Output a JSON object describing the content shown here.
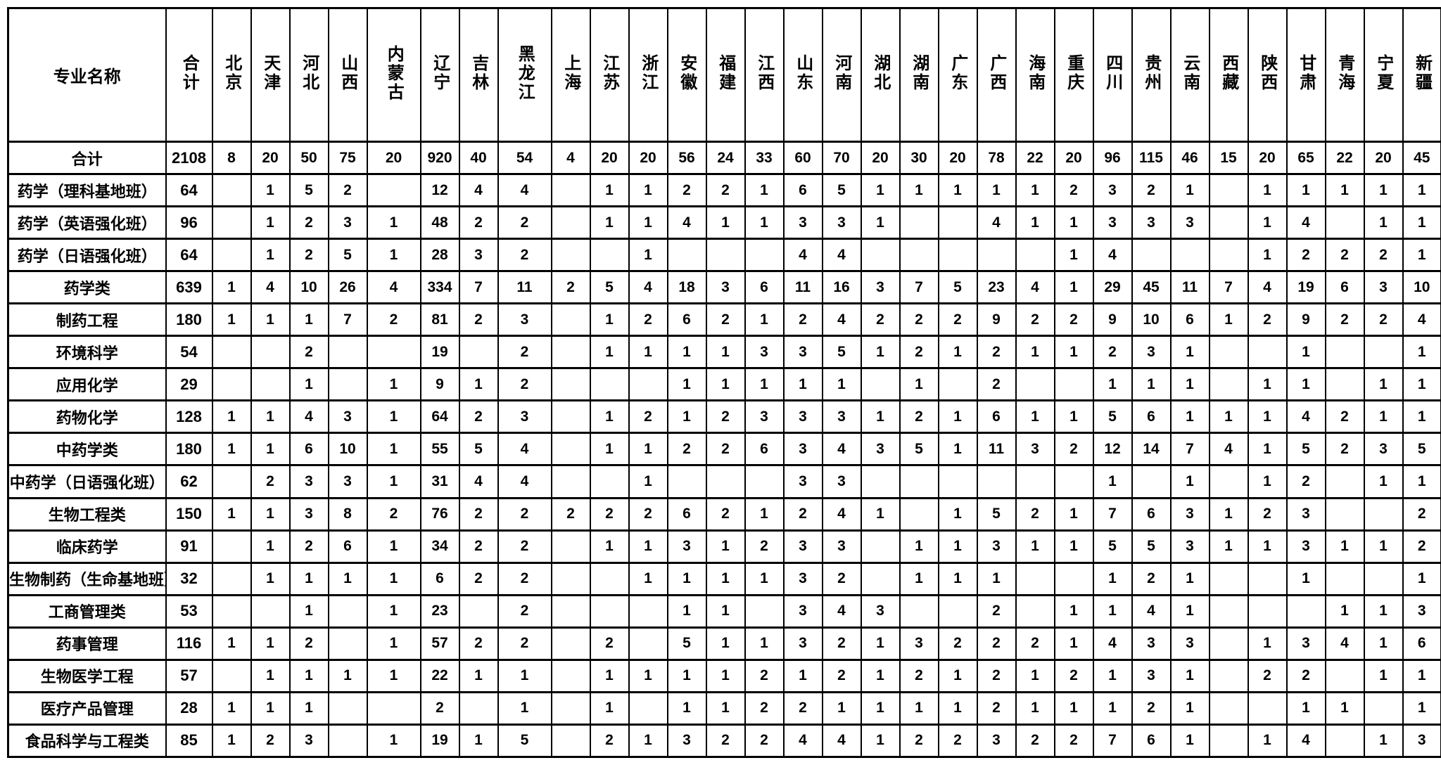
{
  "page": {
    "background": "#ffffff",
    "text_color": "#000000",
    "border_color": "#000000"
  },
  "table": {
    "corner_header": "专业名称",
    "total_header": "合计",
    "provinces": [
      "北京",
      "天津",
      "河北",
      "山西",
      "内蒙古",
      "辽宁",
      "吉林",
      "黑龙江",
      "上海",
      "江苏",
      "浙江",
      "安徽",
      "福建",
      "江西",
      "山东",
      "河南",
      "湖北",
      "湖南",
      "广东",
      "广西",
      "海南",
      "重庆",
      "四川",
      "贵州",
      "云南",
      "西藏",
      "陕西",
      "甘肃",
      "青海",
      "宁夏",
      "新疆"
    ],
    "rows": [
      {
        "name": "合计",
        "total": "2108",
        "values": [
          "8",
          "20",
          "50",
          "75",
          "20",
          "920",
          "40",
          "54",
          "4",
          "20",
          "20",
          "56",
          "24",
          "33",
          "60",
          "70",
          "20",
          "30",
          "20",
          "78",
          "22",
          "20",
          "96",
          "115",
          "46",
          "15",
          "20",
          "65",
          "22",
          "20",
          "45"
        ]
      },
      {
        "name": "药学（理科基地班）",
        "total": "64",
        "values": [
          "",
          "1",
          "5",
          "2",
          "",
          "12",
          "4",
          "4",
          "",
          "1",
          "1",
          "2",
          "2",
          "1",
          "6",
          "5",
          "1",
          "1",
          "1",
          "1",
          "1",
          "2",
          "3",
          "2",
          "1",
          "",
          "1",
          "1",
          "1",
          "1",
          "1"
        ]
      },
      {
        "name": "药学（英语强化班）",
        "total": "96",
        "values": [
          "",
          "1",
          "2",
          "3",
          "1",
          "48",
          "2",
          "2",
          "",
          "1",
          "1",
          "4",
          "1",
          "1",
          "3",
          "3",
          "1",
          "",
          "",
          "4",
          "1",
          "1",
          "3",
          "3",
          "3",
          "",
          "1",
          "4",
          "",
          "1",
          "1"
        ]
      },
      {
        "name": "药学（日语强化班）",
        "total": "64",
        "values": [
          "",
          "1",
          "2",
          "5",
          "1",
          "28",
          "3",
          "2",
          "",
          "",
          "1",
          "",
          "",
          "",
          "4",
          "4",
          "",
          "",
          "",
          "",
          "",
          "1",
          "4",
          "",
          "",
          "",
          "1",
          "2",
          "2",
          "2",
          "1"
        ]
      },
      {
        "name": "药学类",
        "total": "639",
        "values": [
          "1",
          "4",
          "10",
          "26",
          "4",
          "334",
          "7",
          "11",
          "2",
          "5",
          "4",
          "18",
          "3",
          "6",
          "11",
          "16",
          "3",
          "7",
          "5",
          "23",
          "4",
          "1",
          "29",
          "45",
          "11",
          "7",
          "4",
          "19",
          "6",
          "3",
          "10"
        ]
      },
      {
        "name": "制药工程",
        "total": "180",
        "values": [
          "1",
          "1",
          "1",
          "7",
          "2",
          "81",
          "2",
          "3",
          "",
          "1",
          "2",
          "6",
          "2",
          "1",
          "2",
          "4",
          "2",
          "2",
          "2",
          "9",
          "2",
          "2",
          "9",
          "10",
          "6",
          "1",
          "2",
          "9",
          "2",
          "2",
          "4"
        ]
      },
      {
        "name": "环境科学",
        "total": "54",
        "values": [
          "",
          "",
          "2",
          "",
          "",
          "19",
          "",
          "2",
          "",
          "1",
          "1",
          "1",
          "1",
          "3",
          "3",
          "5",
          "1",
          "2",
          "1",
          "2",
          "1",
          "1",
          "2",
          "3",
          "1",
          "",
          "",
          "1",
          "",
          "",
          "1"
        ]
      },
      {
        "name": "应用化学",
        "total": "29",
        "values": [
          "",
          "",
          "1",
          "",
          "1",
          "9",
          "1",
          "2",
          "",
          "",
          "",
          "1",
          "1",
          "1",
          "1",
          "1",
          "",
          "1",
          "",
          "2",
          "",
          "",
          "1",
          "1",
          "1",
          "",
          "1",
          "1",
          "",
          "1",
          "1"
        ]
      },
      {
        "name": "药物化学",
        "total": "128",
        "values": [
          "1",
          "1",
          "4",
          "3",
          "1",
          "64",
          "2",
          "3",
          "",
          "1",
          "2",
          "1",
          "2",
          "3",
          "3",
          "3",
          "1",
          "2",
          "1",
          "6",
          "1",
          "1",
          "5",
          "6",
          "1",
          "1",
          "1",
          "4",
          "2",
          "1",
          "1"
        ]
      },
      {
        "name": "中药学类",
        "total": "180",
        "values": [
          "1",
          "1",
          "6",
          "10",
          "1",
          "55",
          "5",
          "4",
          "",
          "1",
          "1",
          "2",
          "2",
          "6",
          "3",
          "4",
          "3",
          "5",
          "1",
          "11",
          "3",
          "2",
          "12",
          "14",
          "7",
          "4",
          "1",
          "5",
          "2",
          "3",
          "5"
        ]
      },
      {
        "name": "中药学（日语强化班）",
        "total": "62",
        "values": [
          "",
          "2",
          "3",
          "3",
          "1",
          "31",
          "4",
          "4",
          "",
          "",
          "1",
          "",
          "",
          "",
          "3",
          "3",
          "",
          "",
          "",
          "",
          "",
          "",
          "1",
          "",
          "1",
          "",
          "1",
          "2",
          "",
          "1",
          "1"
        ]
      },
      {
        "name": "生物工程类",
        "total": "150",
        "values": [
          "1",
          "1",
          "3",
          "8",
          "2",
          "76",
          "2",
          "2",
          "2",
          "2",
          "2",
          "6",
          "2",
          "1",
          "2",
          "4",
          "1",
          "",
          "1",
          "5",
          "2",
          "1",
          "7",
          "6",
          "3",
          "1",
          "2",
          "3",
          "",
          "",
          "2"
        ]
      },
      {
        "name": "临床药学",
        "total": "91",
        "values": [
          "",
          "1",
          "2",
          "6",
          "1",
          "34",
          "2",
          "2",
          "",
          "1",
          "1",
          "3",
          "1",
          "2",
          "3",
          "3",
          "",
          "1",
          "1",
          "3",
          "1",
          "1",
          "5",
          "5",
          "3",
          "1",
          "1",
          "3",
          "1",
          "1",
          "2"
        ]
      },
      {
        "name": "生物制药（生命基地班）",
        "total": "32",
        "values": [
          "",
          "1",
          "1",
          "1",
          "1",
          "6",
          "2",
          "2",
          "",
          "",
          "1",
          "1",
          "1",
          "1",
          "3",
          "2",
          "",
          "1",
          "1",
          "1",
          "",
          "",
          "1",
          "2",
          "1",
          "",
          "",
          "1",
          "",
          "",
          "1"
        ]
      },
      {
        "name": "工商管理类",
        "total": "53",
        "values": [
          "",
          "",
          "1",
          "",
          "1",
          "23",
          "",
          "2",
          "",
          "",
          "",
          "1",
          "1",
          "",
          "3",
          "4",
          "3",
          "",
          "",
          "2",
          "",
          "1",
          "1",
          "4",
          "1",
          "",
          "",
          "",
          "1",
          "1",
          "3"
        ]
      },
      {
        "name": "药事管理",
        "total": "116",
        "values": [
          "1",
          "1",
          "2",
          "",
          "1",
          "57",
          "2",
          "2",
          "",
          "2",
          "",
          "5",
          "1",
          "1",
          "3",
          "2",
          "1",
          "3",
          "2",
          "2",
          "2",
          "1",
          "4",
          "3",
          "3",
          "",
          "1",
          "3",
          "4",
          "1",
          "6"
        ]
      },
      {
        "name": "生物医学工程",
        "total": "57",
        "values": [
          "",
          "1",
          "1",
          "1",
          "1",
          "22",
          "1",
          "1",
          "",
          "1",
          "1",
          "1",
          "1",
          "2",
          "1",
          "2",
          "1",
          "2",
          "1",
          "2",
          "1",
          "2",
          "1",
          "3",
          "1",
          "",
          "2",
          "2",
          "",
          "1",
          "1"
        ]
      },
      {
        "name": "医疗产品管理",
        "total": "28",
        "values": [
          "1",
          "1",
          "1",
          "",
          "",
          "2",
          "",
          "1",
          "",
          "1",
          "",
          "1",
          "1",
          "2",
          "2",
          "1",
          "1",
          "1",
          "1",
          "2",
          "1",
          "1",
          "1",
          "2",
          "1",
          "",
          "",
          "1",
          "1",
          "",
          "1"
        ]
      },
      {
        "name": "食品科学与工程类",
        "total": "85",
        "values": [
          "1",
          "2",
          "3",
          "",
          "1",
          "19",
          "1",
          "5",
          "",
          "2",
          "1",
          "3",
          "2",
          "2",
          "4",
          "4",
          "1",
          "2",
          "2",
          "3",
          "2",
          "2",
          "7",
          "6",
          "1",
          "",
          "1",
          "4",
          "",
          "1",
          "3"
        ]
      }
    ]
  }
}
